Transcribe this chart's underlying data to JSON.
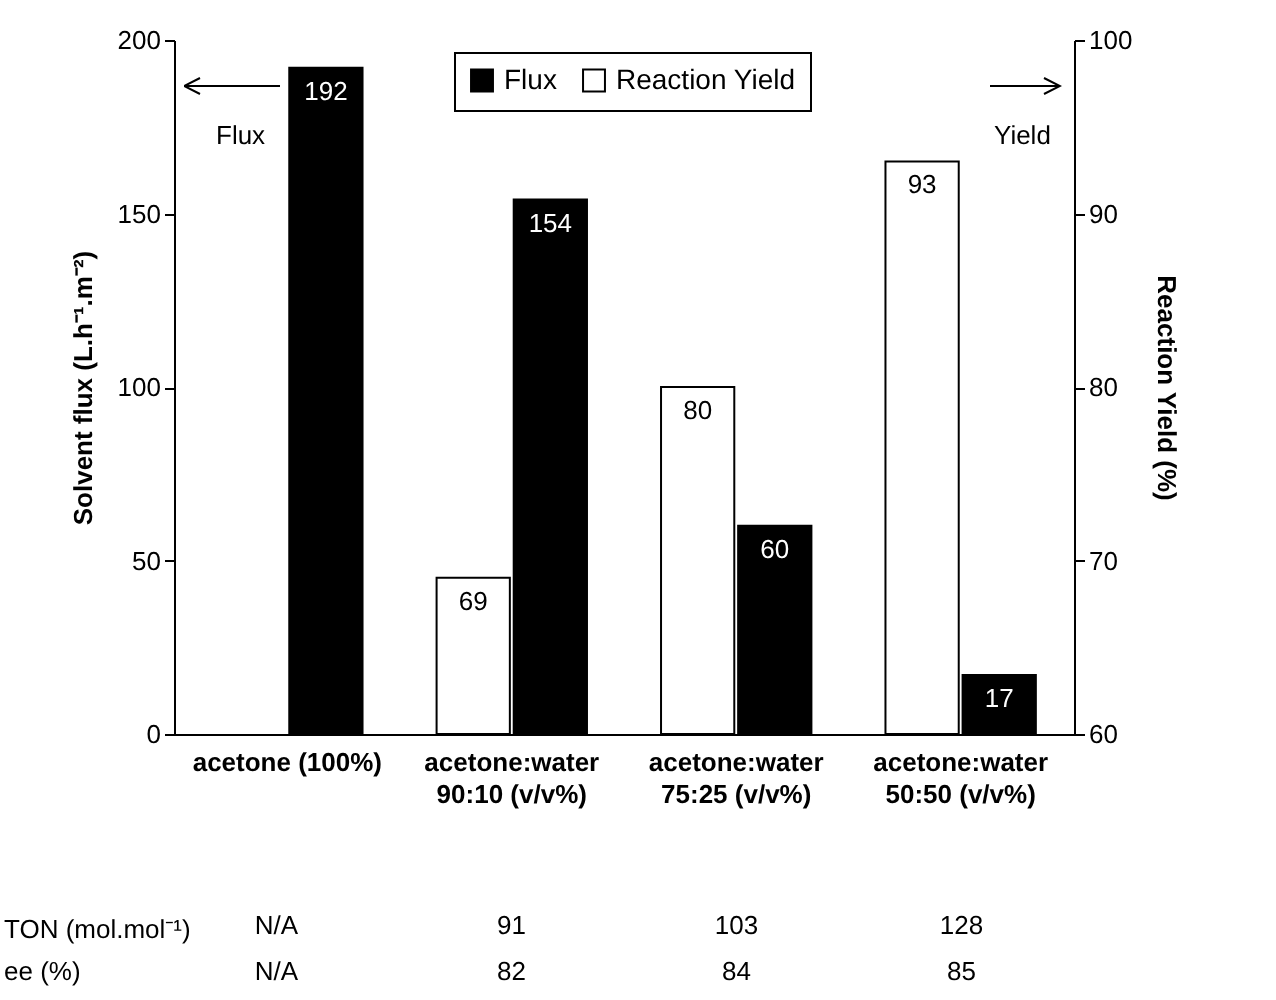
{
  "chart_data": {
    "type": "bar",
    "categories": [
      "acetone (100%)",
      "acetone:water\n90:10 (v/v%)",
      "acetone:water\n75:25 (v/v%)",
      "acetone:water\n50:50 (v/v%)"
    ],
    "series": [
      {
        "name": "Flux",
        "color": "#000000",
        "values": [
          192,
          154,
          60,
          17
        ]
      },
      {
        "name": "Reaction Yield",
        "color": "#ffffff",
        "values": [
          null,
          69,
          80,
          93
        ],
        "axis": "y2"
      }
    ],
    "ylabel": "Solvent flux (L.h⁻¹.m⁻²)",
    "y2label": "Reaction Yield (%)",
    "ylim": [
      0,
      200
    ],
    "yticks": [
      0,
      50,
      100,
      150,
      200
    ],
    "y2lim": [
      60,
      100
    ],
    "y2ticks": [
      60,
      70,
      80,
      90,
      100
    ],
    "data_labels": true,
    "legend": "top",
    "grid": false,
    "annotations": [
      "Flux",
      "Yield",
      "TON (mol.mol⁻¹)",
      "N/A",
      "91",
      "103",
      "128",
      "ee (%)",
      "N/A",
      "82",
      "84",
      "85"
    ]
  }
}
